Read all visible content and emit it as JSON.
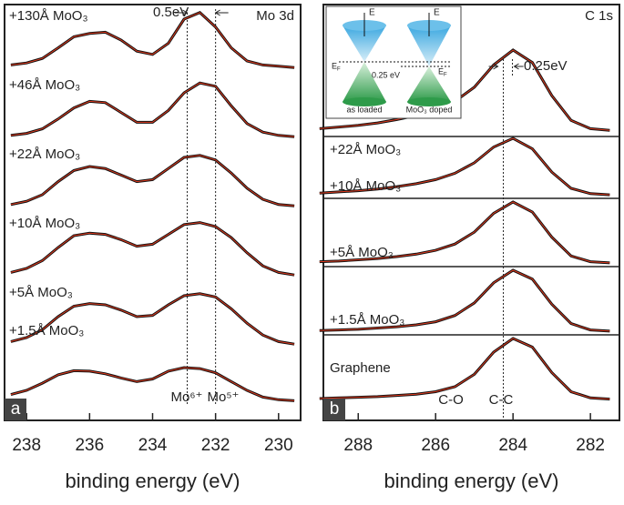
{
  "chart_data": [
    {
      "type": "line",
      "panel_label": "a",
      "title": "Mo 3d",
      "xlabel": "binding energy (eV)",
      "x": [
        238.5,
        238,
        237.5,
        237,
        236.5,
        236,
        235.5,
        235,
        234.5,
        234,
        233.5,
        233,
        232.5,
        232,
        231.5,
        231,
        230.5,
        230,
        229.5
      ],
      "xlim": [
        238.7,
        229.3
      ],
      "xticks": [
        238,
        236,
        234,
        232,
        230
      ],
      "ylim": [
        0,
        1
      ],
      "fit_color": "#e03a1e",
      "shift_label": "0.5eV",
      "vlines": [
        232.9,
        232.0
      ],
      "peak_labels": [
        "Mo⁶⁺",
        "Mo⁵⁺"
      ],
      "series": [
        {
          "name": "+130Å MoO₃",
          "color": "#111111",
          "values": [
            0.12,
            0.15,
            0.22,
            0.38,
            0.55,
            0.6,
            0.62,
            0.5,
            0.33,
            0.28,
            0.45,
            0.82,
            0.92,
            0.7,
            0.38,
            0.18,
            0.12,
            0.1,
            0.08
          ]
        },
        {
          "name": "+46Å MoO₃",
          "color": "#111111",
          "values": [
            0.1,
            0.13,
            0.2,
            0.35,
            0.52,
            0.62,
            0.6,
            0.45,
            0.3,
            0.3,
            0.48,
            0.75,
            0.9,
            0.85,
            0.55,
            0.28,
            0.15,
            0.1,
            0.08
          ]
        },
        {
          "name": "+22Å MoO₃",
          "color": "#111111",
          "values": [
            0.1,
            0.15,
            0.25,
            0.45,
            0.62,
            0.68,
            0.65,
            0.55,
            0.45,
            0.48,
            0.65,
            0.82,
            0.85,
            0.78,
            0.58,
            0.35,
            0.18,
            0.1,
            0.08
          ]
        },
        {
          "name": "+10Å MoO₃",
          "color": "#111111",
          "values": [
            0.12,
            0.18,
            0.3,
            0.5,
            0.68,
            0.72,
            0.7,
            0.62,
            0.52,
            0.55,
            0.7,
            0.85,
            0.88,
            0.82,
            0.65,
            0.42,
            0.22,
            0.12,
            0.08
          ]
        },
        {
          "name": "+5Å MoO₃",
          "color": "#111111",
          "values": [
            0.12,
            0.18,
            0.3,
            0.5,
            0.66,
            0.7,
            0.68,
            0.6,
            0.5,
            0.52,
            0.68,
            0.82,
            0.85,
            0.8,
            0.62,
            0.4,
            0.22,
            0.12,
            0.08
          ]
        },
        {
          "name": "+1.5Å MoO₃",
          "color": "#111111",
          "values": [
            0.2,
            0.28,
            0.42,
            0.58,
            0.66,
            0.65,
            0.6,
            0.52,
            0.45,
            0.5,
            0.65,
            0.72,
            0.7,
            0.62,
            0.45,
            0.28,
            0.15,
            0.1,
            0.08
          ]
        }
      ]
    },
    {
      "type": "line",
      "panel_label": "b",
      "title": "C 1s",
      "xlabel": "binding energy (eV)",
      "x": [
        289,
        288.5,
        288,
        287.5,
        287,
        286.5,
        286,
        285.5,
        285,
        284.5,
        284,
        283.5,
        283,
        282.5,
        282,
        281.5
      ],
      "xlim": [
        288.9,
        281.25
      ],
      "xticks": [
        288,
        286,
        284,
        282
      ],
      "ylim": [
        0,
        1
      ],
      "fit_color": "#e03a1e",
      "shift_label": "0.25eV",
      "vlines": [
        284.25
      ],
      "peak_labels": [
        "C-O",
        "C-C"
      ],
      "inset": {
        "energy": "E",
        "fermi_symbol": "E",
        "fermi_subscript": "F",
        "gap": "0.25 eV",
        "left_caption": "as loaded",
        "right_caption": "MoO₃ doped"
      },
      "series": [
        {
          "name": "+22Å MoO₃",
          "color": "#111111",
          "values": [
            0.05,
            0.07,
            0.09,
            0.12,
            0.16,
            0.21,
            0.28,
            0.38,
            0.55,
            0.82,
            1.0,
            0.85,
            0.45,
            0.15,
            0.05,
            0.03
          ]
        },
        {
          "name": "+10Å MoO₃",
          "color": "#111111",
          "values": [
            0.06,
            0.08,
            0.1,
            0.13,
            0.17,
            0.22,
            0.29,
            0.4,
            0.58,
            0.85,
            1.0,
            0.82,
            0.42,
            0.14,
            0.05,
            0.03
          ]
        },
        {
          "name": "+5Å MoO₃",
          "color": "#111111",
          "values": [
            0.05,
            0.06,
            0.08,
            0.1,
            0.13,
            0.17,
            0.23,
            0.33,
            0.52,
            0.82,
            1.0,
            0.84,
            0.44,
            0.14,
            0.05,
            0.03
          ]
        },
        {
          "name": "+1.5Å MoO₃",
          "color": "#111111",
          "values": [
            0.04,
            0.05,
            0.06,
            0.08,
            0.1,
            0.13,
            0.18,
            0.28,
            0.48,
            0.8,
            1.0,
            0.86,
            0.46,
            0.15,
            0.05,
            0.03
          ]
        },
        {
          "name": "Graphene",
          "color": "#111111",
          "values": [
            0.03,
            0.04,
            0.05,
            0.06,
            0.08,
            0.1,
            0.14,
            0.22,
            0.42,
            0.78,
            1.0,
            0.86,
            0.45,
            0.14,
            0.04,
            0.02
          ]
        }
      ]
    }
  ]
}
